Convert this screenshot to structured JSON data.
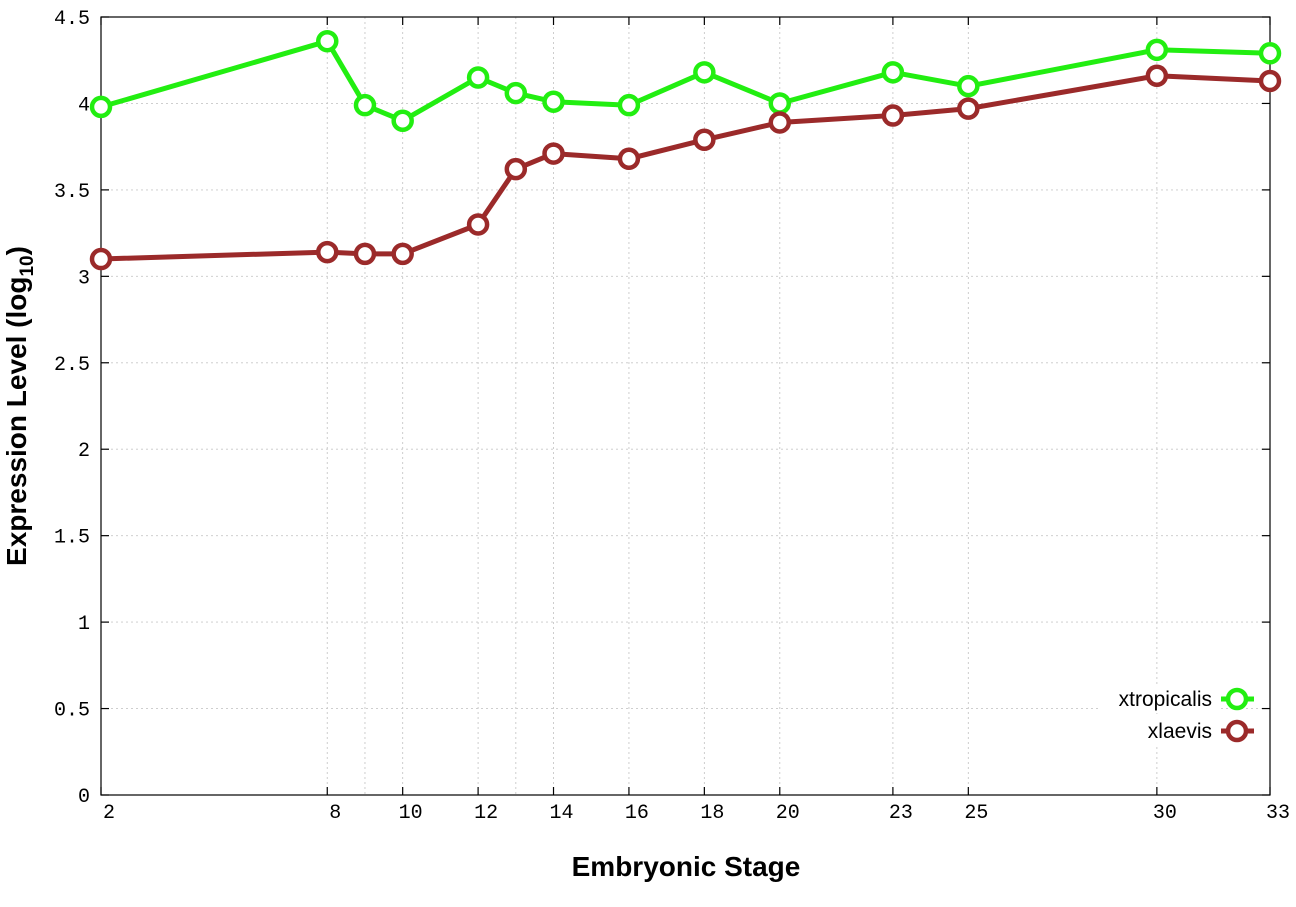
{
  "chart_data": {
    "type": "line",
    "xlabel": "Embryonic Stage",
    "ylabel_main": "Expression Level (log",
    "ylabel_sub": "10",
    "ylabel_close": ")",
    "xlim": [
      2,
      33
    ],
    "ylim": [
      0,
      4.5
    ],
    "grid": true,
    "legend_position": "bottom-right",
    "x_ticks": [
      2,
      8,
      10,
      12,
      14,
      16,
      18,
      20,
      23,
      25,
      30,
      33
    ],
    "y_ticks": [
      0,
      0.5,
      1,
      1.5,
      2,
      2.5,
      3,
      3.5,
      4,
      4.5
    ],
    "x_extra_grid": [
      9,
      13
    ],
    "series": [
      {
        "name": "xtropicalis",
        "color": "#22ee11",
        "x": [
          2,
          8,
          9,
          10,
          12,
          13,
          14,
          16,
          18,
          20,
          23,
          25,
          30,
          33
        ],
        "y": [
          3.98,
          4.36,
          3.99,
          3.9,
          4.15,
          4.06,
          4.01,
          3.99,
          4.18,
          4.0,
          4.18,
          4.1,
          4.31,
          4.29
        ]
      },
      {
        "name": "xlaevis",
        "color": "#9b2a2a",
        "x": [
          2,
          8,
          9,
          10,
          12,
          13,
          14,
          16,
          18,
          20,
          23,
          25,
          30,
          33
        ],
        "y": [
          3.1,
          3.14,
          3.13,
          3.13,
          3.3,
          3.62,
          3.71,
          3.68,
          3.79,
          3.89,
          3.93,
          3.97,
          4.16,
          4.13
        ]
      }
    ]
  }
}
